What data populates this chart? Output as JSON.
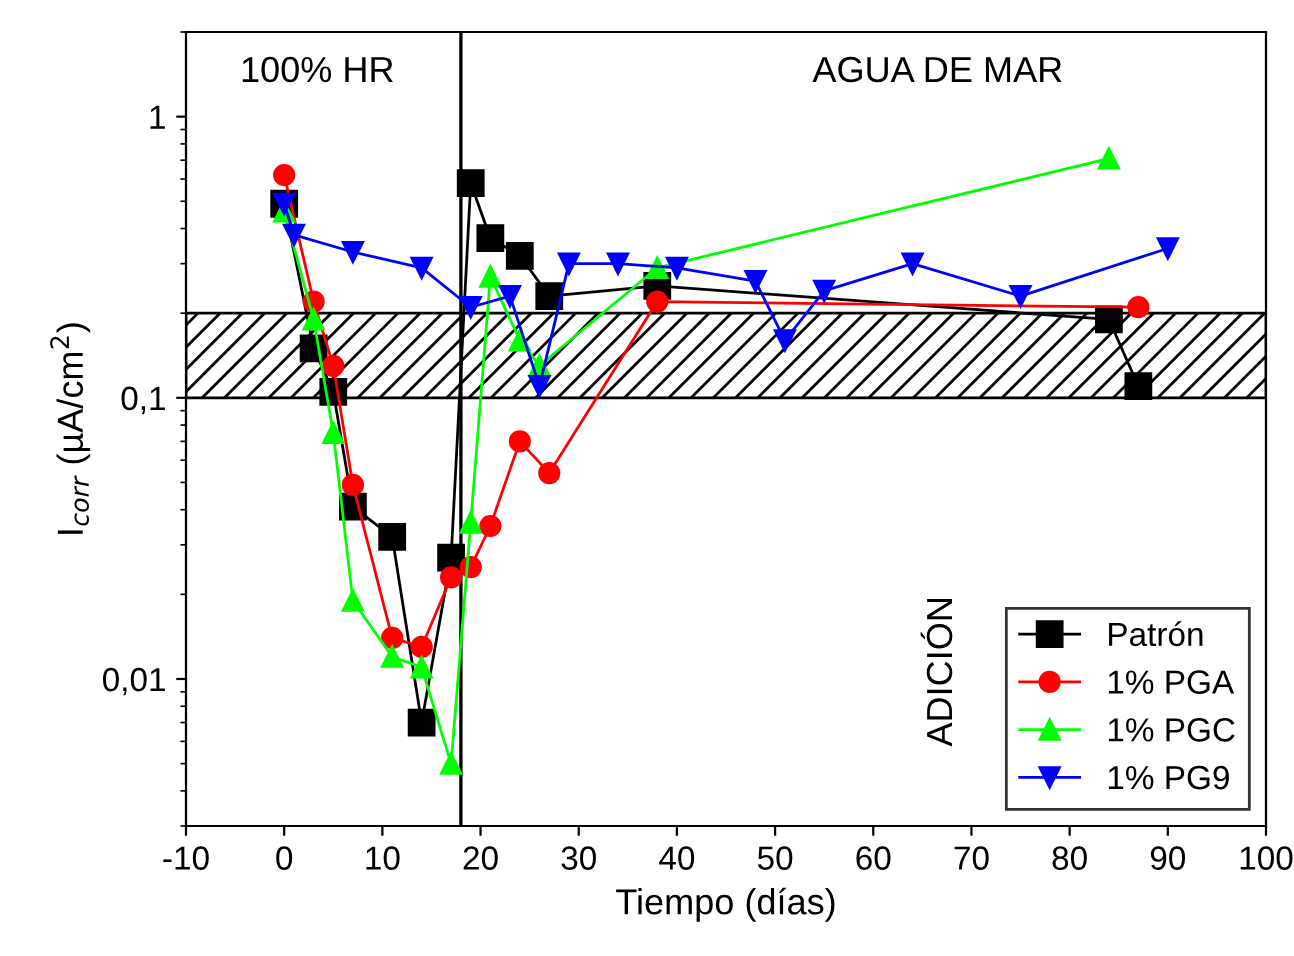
{
  "chart_data": {
    "type": "line",
    "xlabel": "Tiempo (días)",
    "ylabel": "I$_{corr}$ (µA/cm$^{2}$)",
    "log": "y",
    "xlim": [
      -10,
      100
    ],
    "xticks": [
      -10,
      0,
      10,
      20,
      30,
      40,
      50,
      60,
      70,
      80,
      90,
      100
    ],
    "ylim": [
      0.003,
      2
    ],
    "yticks": [
      {
        "value": 0.01,
        "label": "0,01"
      },
      {
        "value": 0.1,
        "label": "0,1"
      },
      {
        "value": 1,
        "label": "1"
      }
    ],
    "grid": false,
    "legend": "bottom right",
    "line_style": "solid",
    "series": [
      {
        "name": "Patrón",
        "color": "#000000",
        "marker": "square",
        "x": [
          0,
          3,
          5,
          7,
          11,
          14,
          17,
          19,
          21,
          24,
          27,
          38,
          84,
          87
        ],
        "values": [
          0.49,
          0.15,
          0.105,
          0.041,
          0.032,
          0.007,
          0.027,
          0.58,
          0.37,
          0.32,
          0.23,
          0.25,
          0.19,
          0.11
        ]
      },
      {
        "name": "1% PGA",
        "color": "#ff0000",
        "marker": "circle",
        "x": [
          0,
          3,
          5,
          7,
          11,
          14,
          17,
          19,
          21,
          24,
          27,
          38,
          87
        ],
        "values": [
          0.62,
          0.22,
          0.13,
          0.049,
          0.014,
          0.013,
          0.023,
          0.025,
          0.035,
          0.07,
          0.054,
          0.22,
          0.21
        ]
      },
      {
        "name": "1% PGC",
        "color": "#00ff00",
        "marker": "triangle",
        "x": [
          0,
          3,
          5,
          7,
          11,
          14,
          17,
          19,
          21,
          24,
          26,
          38,
          84
        ],
        "values": [
          0.46,
          0.19,
          0.075,
          0.019,
          0.012,
          0.011,
          0.005,
          0.036,
          0.27,
          0.16,
          0.13,
          0.29,
          0.71
        ]
      },
      {
        "name": "1% PG9",
        "color": "#0000ff",
        "marker": "triangle_down",
        "x": [
          0,
          1,
          7,
          14,
          19,
          23,
          26,
          29,
          34,
          40,
          48,
          51,
          55,
          64,
          75,
          90
        ],
        "values": [
          0.49,
          0.38,
          0.33,
          0.29,
          0.21,
          0.23,
          0.11,
          0.3,
          0.3,
          0.29,
          0.26,
          0.16,
          0.24,
          0.3,
          0.23,
          0.34
        ]
      }
    ],
    "ref_lines": [
      {
        "axis": "x",
        "value": 18,
        "color": "#000000",
        "line_style": "solid"
      }
    ],
    "bands": [
      {
        "axis": "y",
        "from": 0.1,
        "to": 0.2,
        "color": "#000000"
      }
    ],
    "annotations": [
      "100% HR",
      "AGUA DE MAR",
      "ADICIÓN"
    ]
  }
}
